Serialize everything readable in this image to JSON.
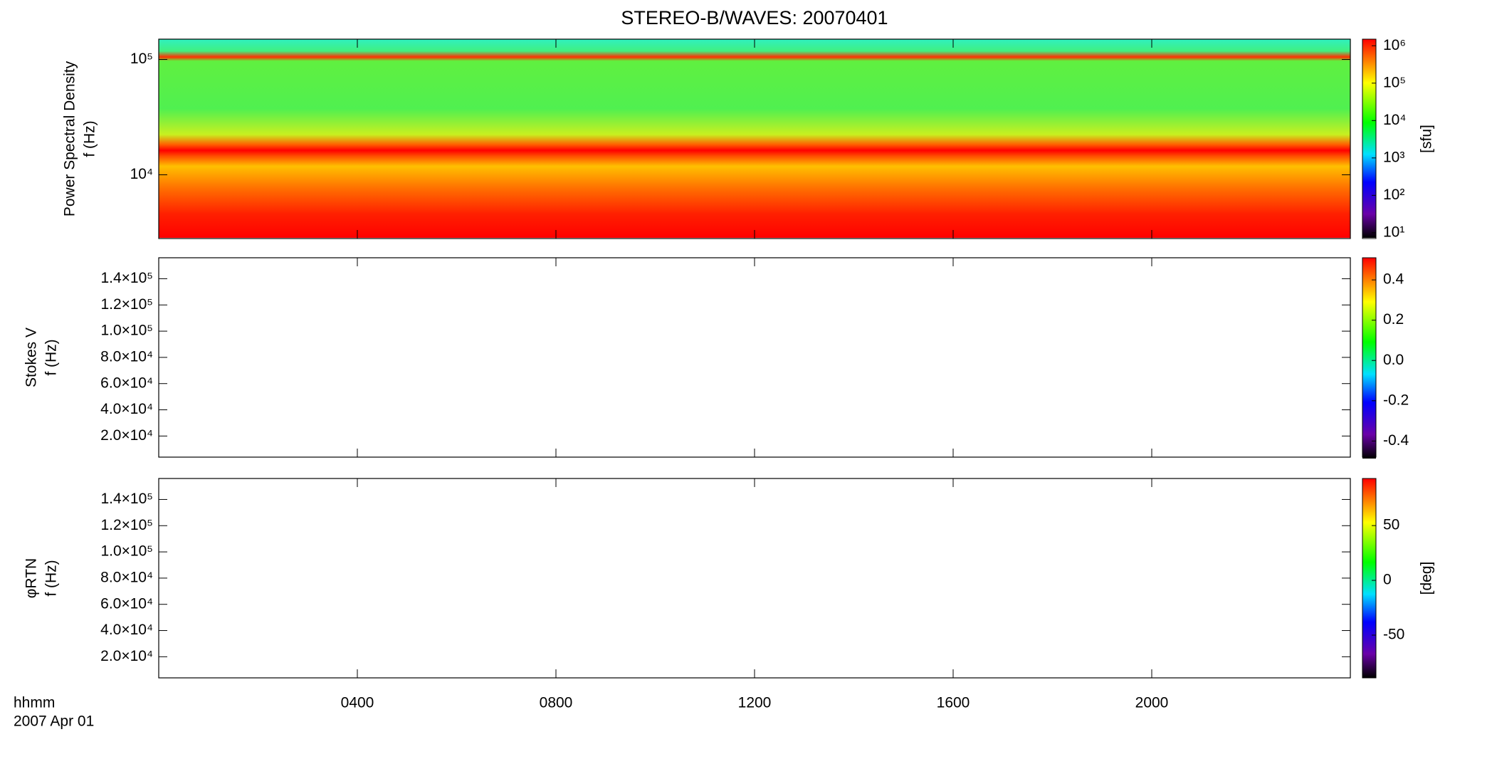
{
  "chart_data": {
    "type": "spectrogram",
    "title": "STEREO-B/WAVES: 20070401",
    "xlabel": "hhmm",
    "xsublabel": "2007 Apr 01",
    "xlim": [
      0,
      24
    ],
    "xticks": [
      {
        "value": 4,
        "label": "0400"
      },
      {
        "value": 8,
        "label": "0800"
      },
      {
        "value": 12,
        "label": "1200"
      },
      {
        "value": 16,
        "label": "1600"
      },
      {
        "value": 20,
        "label": "2000"
      }
    ],
    "panels": [
      {
        "ylabel": [
          "Power Spectral Density",
          "f (Hz)"
        ],
        "log": true,
        "ylim": [
          2800,
          150000
        ],
        "yticks": [
          {
            "value": 10000,
            "label": "10⁴"
          },
          {
            "value": 100000,
            "label": "10⁵"
          }
        ],
        "colorbar": {
          "log": true,
          "lim": [
            7,
            1500000
          ],
          "label": "[sfu]",
          "ticks": [
            {
              "value": 10,
              "label": "10¹"
            },
            {
              "value": 100,
              "label": "10²"
            },
            {
              "value": 1000,
              "label": "10³"
            },
            {
              "value": 10000,
              "label": "10⁴"
            },
            {
              "value": 100000,
              "label": "10⁵"
            },
            {
              "value": 1000000,
              "label": "10⁶"
            }
          ]
        }
      },
      {
        "ylabel": [
          "Stokes V",
          "f (Hz)"
        ],
        "log": false,
        "ylim": [
          3900,
          156000
        ],
        "yticks": [
          {
            "value": 20000,
            "label": "2.0×10⁴"
          },
          {
            "value": 40000,
            "label": "4.0×10⁴"
          },
          {
            "value": 60000,
            "label": "6.0×10⁴"
          },
          {
            "value": 80000,
            "label": "8.0×10⁴"
          },
          {
            "value": 100000,
            "label": "1.0×10⁵"
          },
          {
            "value": 120000,
            "label": "1.2×10⁵"
          },
          {
            "value": 140000,
            "label": "1.4×10⁵"
          }
        ],
        "colorbar": {
          "log": false,
          "lim": [
            -0.48,
            0.51
          ],
          "ticks": [
            -0.4,
            -0.2,
            {
              "value": 0,
              "label": "0.0"
            },
            0.2,
            0.4
          ]
        }
      },
      {
        "ylabel": [
          "φRTN",
          "f (Hz)"
        ],
        "log": false,
        "ylim": [
          3900,
          156000
        ],
        "yticks": [
          {
            "value": 20000,
            "label": "2.0×10⁴"
          },
          {
            "value": 40000,
            "label": "4.0×10⁴"
          },
          {
            "value": 60000,
            "label": "6.0×10⁴"
          },
          {
            "value": 80000,
            "label": "8.0×10⁴"
          },
          {
            "value": 100000,
            "label": "1.0×10⁵"
          },
          {
            "value": 120000,
            "label": "1.2×10⁵"
          },
          {
            "value": 140000,
            "label": "1.4×10⁵"
          }
        ],
        "colorbar": {
          "log": false,
          "lim": [
            -89,
            93
          ],
          "label": "[deg]",
          "ticks": [
            -50,
            0,
            50
          ]
        }
      }
    ]
  }
}
